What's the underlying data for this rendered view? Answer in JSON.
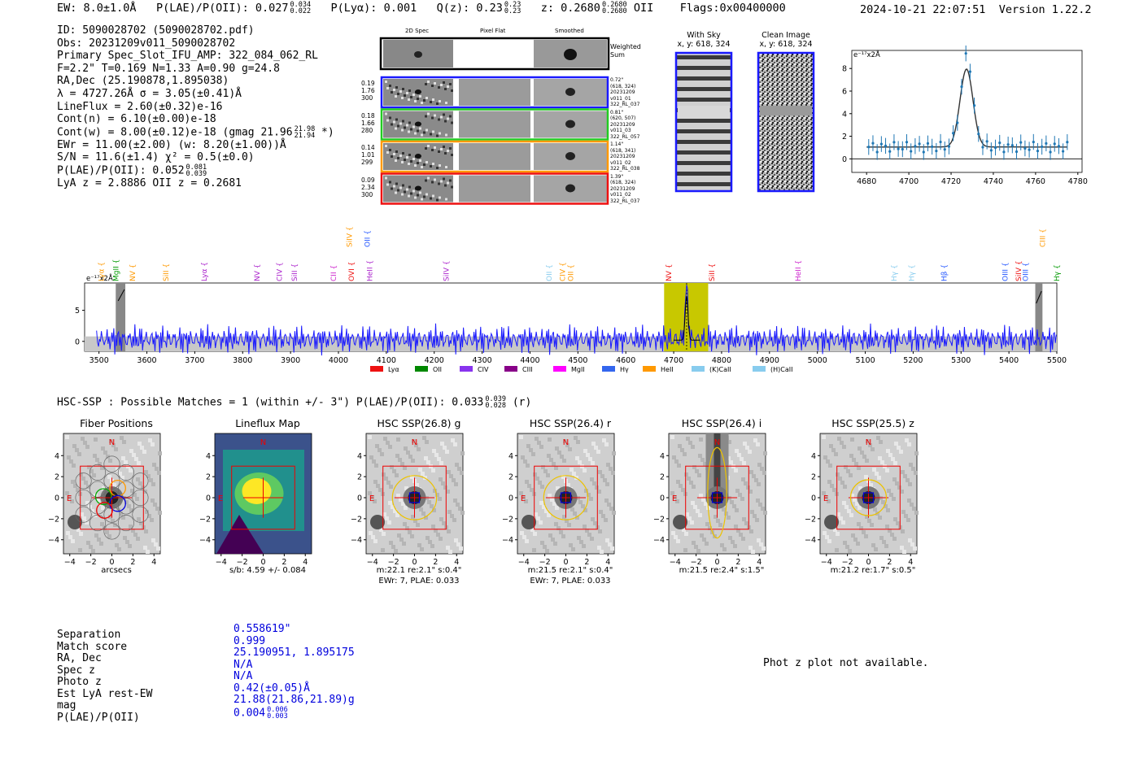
{
  "header": {
    "ew_label": "EW:",
    "ew_value": "8.0±1.0Å",
    "plae_label": "P(LAE)/P(OII):",
    "plae_value": "0.027",
    "plae_hi": "0.034",
    "plae_lo": "0.022",
    "plya_label": "P(Lyα):",
    "plya_value": "0.001",
    "qz_label": "Q(z):",
    "qz_value": "0.23",
    "qz_hi": "0.23",
    "qz_lo": "0.23",
    "z_label": "z:",
    "z_value": "0.2680",
    "z_hi": "0.2680",
    "z_lo": "0.2680",
    "z_line": "OII",
    "flags": "Flags:0x00400000",
    "timestamp": "2024-10-21 22:07:51",
    "version": "Version 1.22.2"
  },
  "info": {
    "lines": [
      "ID: 5090028702 (5090028702.pdf)",
      "Obs: 20231209v011_5090028702",
      "Primary Spec_Slot_IFU_AMP: 322_084_062_RL",
      "F=2.2\"  T=0.169  N=1.33  A=0.90  g=24.8",
      "RA,Dec (25.190878,1.895038)",
      "λ = 4727.26Å  σ = 3.05(±0.41)Å",
      "LineFlux = 2.60(±0.32)e-16",
      "Cont(n) = 6.10(±0.00)e-18"
    ],
    "contw": "Cont(w) = 8.00(±0.12)e-18 (gmag 21.96",
    "contw_hi": "21.98",
    "contw_lo": "21.94",
    "contw_end": "*)",
    "lines2": [
      "EWr = 11.00(±2.00) (w: 8.20(±1.00))Å",
      "S/N = 11.6(±1.4)  χ² = 0.5(±0.0)"
    ],
    "plae2": "P(LAE)/P(OII): 0.052",
    "plae2_hi": "0.081",
    "plae2_lo": "0.039",
    "lyaz": "LyA z = 2.8886  OII z = 0.2681"
  },
  "cutouts": {
    "col_titles": [
      "2D Spec",
      "Pixel Flat",
      "Smoothed"
    ],
    "weighted_label": "Weighted Sum",
    "rows": [
      {
        "left": [
          "0.19",
          "1.76",
          "300"
        ],
        "right": [
          "0.72\"",
          "(618, 324)",
          "20231209",
          "v011_01",
          "322_RL_037"
        ],
        "color": "#1a1aff"
      },
      {
        "left": [
          "0.18",
          "1.66",
          "280"
        ],
        "right": [
          "0.81\"",
          "(620, 507)",
          "20231209",
          "v011_03",
          "322_RL_057"
        ],
        "color": "#22cc22"
      },
      {
        "left": [
          "0.14",
          "1.01",
          "299"
        ],
        "right": [
          "1.14\"",
          "(618, 341)",
          "20231209",
          "v011_02",
          "322_RL_038"
        ],
        "color": "#ff9900"
      },
      {
        "left": [
          "0.09",
          "2.34",
          "300"
        ],
        "right": [
          "1.39\"",
          "(618, 324)",
          "20231209",
          "v011_02",
          "322_RL_037"
        ],
        "color": "#ee1111"
      }
    ]
  },
  "sky": {
    "with_sky_title": "With Sky",
    "with_sky_xy": "x, y: 618, 324",
    "clean_title": "Clean Image",
    "clean_xy": "x, y: 618, 324"
  },
  "line_fit": {
    "unit": "e⁻¹⁷x2Å",
    "x_ticks": [
      "4680",
      "4700",
      "4720",
      "4740",
      "4760",
      "4780"
    ],
    "y_ticks": [
      "0",
      "2",
      "4",
      "6",
      "8"
    ]
  },
  "spectrum": {
    "unit": "e⁻¹⁷x2Å",
    "y_ticks": [
      "0",
      "5"
    ],
    "x_ticks": [
      "3500",
      "3600",
      "3700",
      "3800",
      "3900",
      "4000",
      "4100",
      "4200",
      "4300",
      "4400",
      "4500",
      "4600",
      "4700",
      "4800",
      "4900",
      "5000",
      "5100",
      "5200",
      "5300",
      "5400",
      "5500"
    ],
    "line_markers": [
      {
        "label": "Lyα",
        "color": "#ff9900",
        "high": false
      },
      {
        "label": "MgII",
        "color": "#009900",
        "high": false
      },
      {
        "label": "NV",
        "color": "#ff9900",
        "high": false
      },
      {
        "label": "SiII",
        "color": "#ff9900",
        "high": false
      },
      {
        "label": "Lyα",
        "color": "#aa22cc",
        "high": false
      },
      {
        "label": "NV",
        "color": "#aa22cc",
        "high": false
      },
      {
        "label": "CIV",
        "color": "#aa22cc",
        "high": false
      },
      {
        "label": "SiII",
        "color": "#aa22cc",
        "high": false
      },
      {
        "label": "CII",
        "color": "#cc22cc",
        "high": false
      },
      {
        "label": "SiIV",
        "color": "#ff9900",
        "high": true
      },
      {
        "label": "OVI",
        "color": "#ee1111",
        "high": false
      },
      {
        "label": "OII",
        "color": "#2255ff",
        "high": true
      },
      {
        "label": "HeII",
        "color": "#aa22cc",
        "high": false
      },
      {
        "label": "SiIV",
        "color": "#aa22cc",
        "high": false
      },
      {
        "label": "OII",
        "color": "#88ccee",
        "high": false
      },
      {
        "label": "CIV",
        "color": "#ff9900",
        "high": false
      },
      {
        "label": "OII",
        "color": "#ff9900",
        "high": false
      },
      {
        "label": "NV",
        "color": "#ee1111",
        "high": false
      },
      {
        "label": "SiII",
        "color": "#ee1111",
        "high": false
      },
      {
        "label": "HeII",
        "color": "#cc22cc",
        "high": false
      },
      {
        "label": "Hγ",
        "color": "#88ccee",
        "high": false
      },
      {
        "label": "Hγ",
        "color": "#88ccee",
        "high": false
      },
      {
        "label": "Hβ",
        "color": "#2255ff",
        "high": false
      },
      {
        "label": "OIII",
        "color": "#2255ff",
        "high": false
      },
      {
        "label": "SiIV",
        "color": "#ee1111",
        "high": false
      },
      {
        "label": "OIII",
        "color": "#2255ff",
        "high": false
      },
      {
        "label": "CIII",
        "color": "#ff9900",
        "high": true
      },
      {
        "label": "Hγ",
        "color": "#009900",
        "high": false
      }
    ],
    "legend": [
      {
        "label": "Lyα",
        "color": "#ee1111"
      },
      {
        "label": "OII",
        "color": "#008800"
      },
      {
        "label": "CIV",
        "color": "#8833ee"
      },
      {
        "label": "CIII",
        "color": "#880088"
      },
      {
        "label": "MgII",
        "color": "#ff00ff"
      },
      {
        "label": "Hγ",
        "color": "#3366ee"
      },
      {
        "label": "HeII",
        "color": "#ff9900"
      },
      {
        "label": "(K)CaII",
        "color": "#88ccee"
      },
      {
        "label": "(H)CaII",
        "color": "#88ccee"
      }
    ]
  },
  "hsc": {
    "summary": "HSC-SSP : Possible Matches = 1 (within +/- 3\")  P(LAE)/P(OII): 0.033",
    "summary_hi": "0.039",
    "summary_lo": "0.028",
    "summary_band": "(r)",
    "panels": [
      {
        "title": "Fiber Positions",
        "cap1": "arcsecs",
        "cap2": ""
      },
      {
        "title": "Lineflux Map",
        "cap1": "s/b: 4.59 +/- 0.084",
        "cap2": ""
      },
      {
        "title": "HSC SSP(26.8) g",
        "cap1": "m:22.1  re:2.1\"  s:0.4\"",
        "cap2": "EWr: 7, PLAE: 0.033"
      },
      {
        "title": "HSC SSP(26.4) r",
        "cap1": "m:21.5  re:2.1\"  s:0.4\"",
        "cap2": "EWr: 7, PLAE: 0.033"
      },
      {
        "title": "HSC SSP(26.4) i",
        "cap1": "m:21.5  re:2.4\"  s:1.5\"",
        "cap2": ""
      },
      {
        "title": "HSC SSP(25.5) z",
        "cap1": "m:21.2  re:1.7\"  s:0.5\"",
        "cap2": ""
      }
    ],
    "axis_ticks": [
      "−4",
      "−2",
      "0",
      "2",
      "4"
    ],
    "north": "N",
    "east": "E"
  },
  "match": {
    "labels": [
      "Separation",
      "Match score",
      "RA, Dec",
      "Spec z",
      "Photo z",
      "Est LyA rest-EW",
      "mag",
      "P(LAE)/P(OII)"
    ],
    "values": [
      "0.558619\"",
      "0.999",
      "25.190951, 1.895175",
      "N/A",
      "N/A",
      "0.42(±0.05)Å",
      "21.88(21.86,21.89)g",
      "0.004"
    ],
    "plae_hi": "0.006",
    "plae_lo": "0.003",
    "photz_note": "Phot z plot not available."
  }
}
